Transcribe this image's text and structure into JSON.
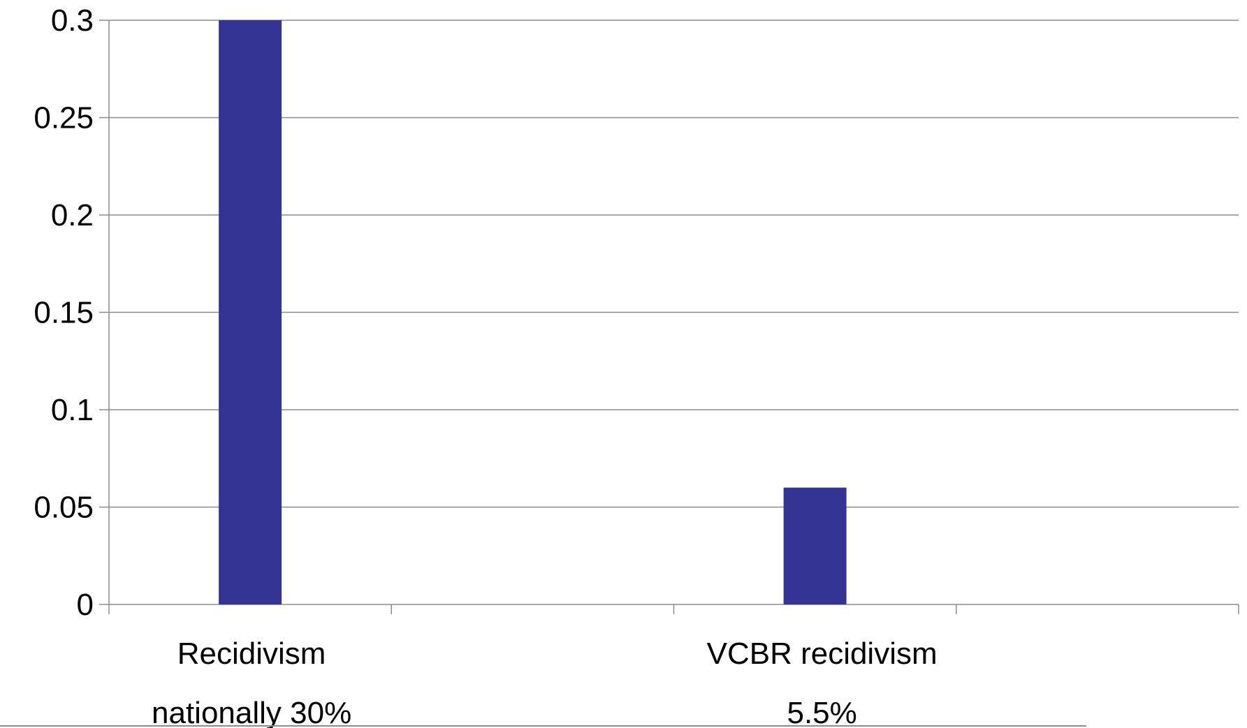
{
  "chart_data": {
    "type": "bar",
    "categories": [
      [
        "Recidivism",
        "nationally 30%"
      ],
      [
        "VCBR recidivism",
        "5.5%"
      ]
    ],
    "values": [
      0.3,
      0.06
    ],
    "ylim": [
      0,
      0.3
    ],
    "yticks": [
      "0",
      "0.05",
      "0.1",
      "0.15",
      "0.2",
      "0.25",
      "0.3"
    ],
    "ytick_values": [
      0,
      0.05,
      0.1,
      0.15,
      0.2,
      0.25,
      0.3
    ],
    "grid": true,
    "legend": "none",
    "title": "",
    "xlabel": "",
    "ylabel": "",
    "colors": {
      "bar": "#343494",
      "grid": "#8c8c8c",
      "axis": "#8c8c8c",
      "text": "#000000"
    }
  }
}
